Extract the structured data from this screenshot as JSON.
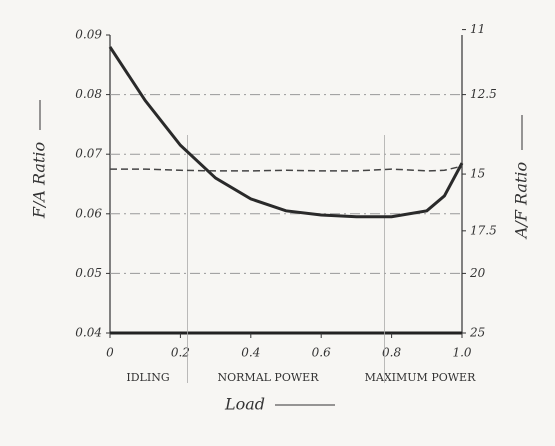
{
  "chart_data": {
    "type": "line",
    "x": [
      0,
      0.1,
      0.2,
      0.3,
      0.4,
      0.5,
      0.6,
      0.7,
      0.8,
      0.9,
      0.95,
      1.0
    ],
    "series": [
      {
        "color": "#2a2a2a",
        "width": 3,
        "dash": false,
        "values": [
          0.088,
          0.079,
          0.0715,
          0.066,
          0.0625,
          0.0605,
          0.0598,
          0.0595,
          0.0595,
          0.0605,
          0.063,
          0.0685
        ]
      },
      {
        "color": "#444",
        "width": 1.5,
        "dash": true,
        "values": [
          0.0675,
          0.0675,
          0.0673,
          0.0672,
          0.0672,
          0.0673,
          0.0672,
          0.0672,
          0.0675,
          0.0672,
          0.0673,
          0.068
        ]
      }
    ],
    "xlim": [
      0,
      1
    ],
    "ylim": [
      0.04,
      0.09
    ],
    "xticks": [
      0,
      0.2,
      0.4,
      0.6,
      0.8,
      {
        "value": 1,
        "label": "1.0"
      }
    ],
    "yticks": [
      0.04,
      0.05,
      0.06,
      0.07,
      0.08,
      0.09
    ],
    "y2scale": "reciprocal",
    "y2ticks": [
      11,
      12.5,
      15,
      17.5,
      20,
      25
    ],
    "grid": true,
    "region_bounds": [
      0.22,
      0.78
    ],
    "ylabel": "F/A Ratio",
    "y2label": "A/F Ratio",
    "xlabel": "Load",
    "annotations": [
      "IDLING",
      "NORMAL POWER",
      "MAXIMUM POWER"
    ]
  }
}
